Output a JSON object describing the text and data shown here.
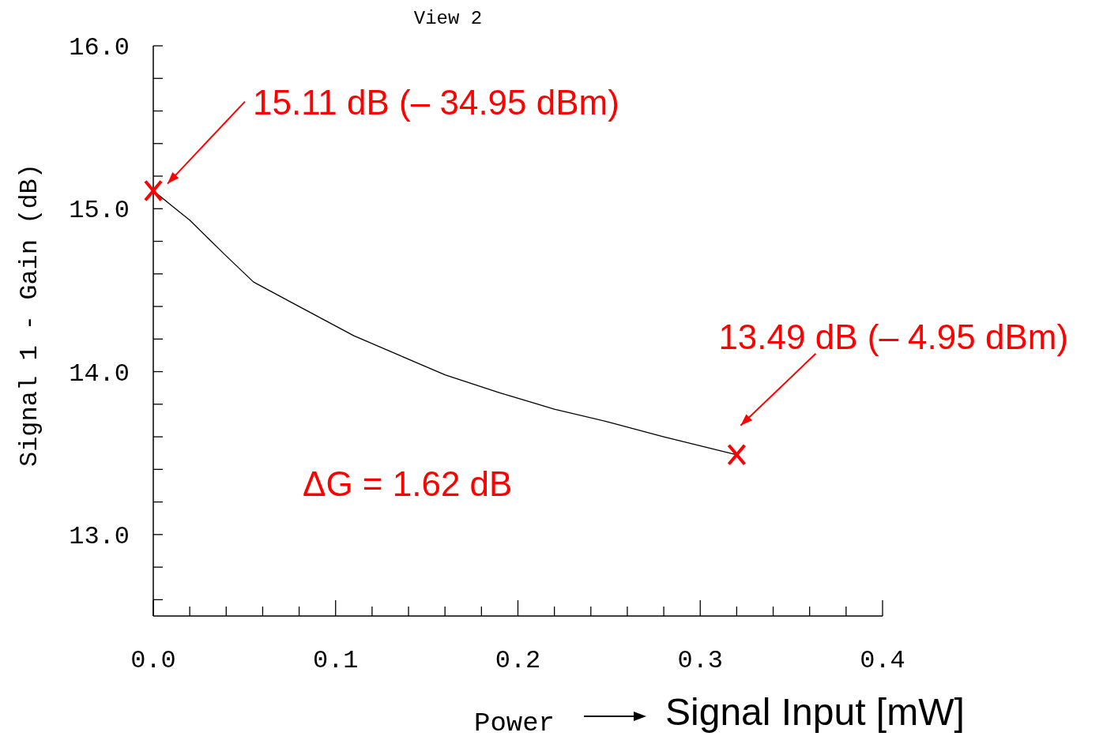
{
  "chart_data": {
    "type": "line",
    "title": "View 2",
    "xlabel": "Power",
    "ylabel": "Signal 1 - Gain (dB)",
    "x": [
      0,
      0.01,
      0.02,
      0.03,
      0.04,
      0.055,
      0.08,
      0.11,
      0.135,
      0.16,
      0.19,
      0.22,
      0.25,
      0.28,
      0.32
    ],
    "series": [
      {
        "color": "#000000",
        "values": [
          15.11,
          15.02,
          14.93,
          14.82,
          14.71,
          14.55,
          14.4,
          14.22,
          14.1,
          13.98,
          13.87,
          13.77,
          13.69,
          13.6,
          13.49
        ]
      }
    ],
    "xlim": [
      0,
      0.4
    ],
    "ylim": [
      12.5,
      16
    ],
    "xticks": [
      {
        "value": 0,
        "label": "0.0"
      },
      {
        "value": 0.02,
        "label": null
      },
      {
        "value": 0.04,
        "label": null
      },
      {
        "value": 0.06,
        "label": null
      },
      {
        "value": 0.08,
        "label": null
      },
      0.1,
      {
        "value": 0.12,
        "label": null
      },
      {
        "value": 0.14,
        "label": null
      },
      {
        "value": 0.16,
        "label": null
      },
      {
        "value": 0.18,
        "label": null
      },
      0.2,
      {
        "value": 0.22,
        "label": null
      },
      {
        "value": 0.24,
        "label": null
      },
      {
        "value": 0.26,
        "label": null
      },
      {
        "value": 0.28,
        "label": null
      },
      0.3,
      {
        "value": 0.32,
        "label": null
      },
      {
        "value": 0.34,
        "label": null
      },
      {
        "value": 0.36,
        "label": null
      },
      {
        "value": 0.38,
        "label": null
      },
      0.4
    ],
    "yticks": [
      {
        "value": 12.6,
        "label": null
      },
      {
        "value": 12.8,
        "label": null
      },
      {
        "value": 13,
        "label": "13.0"
      },
      {
        "value": 13.2,
        "label": null
      },
      {
        "value": 13.4,
        "label": null
      },
      {
        "value": 13.6,
        "label": null
      },
      {
        "value": 13.8,
        "label": null
      },
      {
        "value": 14,
        "label": "14.0"
      },
      {
        "value": 14.2,
        "label": null
      },
      {
        "value": 14.4,
        "label": null
      },
      {
        "value": 14.6,
        "label": null
      },
      {
        "value": 14.8,
        "label": null
      },
      {
        "value": 15,
        "label": "15.0"
      },
      {
        "value": 15.2,
        "label": null
      },
      {
        "value": 15.4,
        "label": null
      },
      {
        "value": 15.6,
        "label": null
      },
      {
        "value": 15.8,
        "label": null
      },
      {
        "value": 16,
        "label": "16.0"
      }
    ],
    "grid": false,
    "marker": "none",
    "line_style": "solid",
    "annotations": [
      "15.11 dB (– 34.95 dBm)",
      {
        "text": "13.49 dB (– 4.95 dBm)",
        "x": 0.32,
        "y": 13.49
      },
      "ΔG = 1.62 dB",
      "Signal Input [mW]"
    ]
  }
}
